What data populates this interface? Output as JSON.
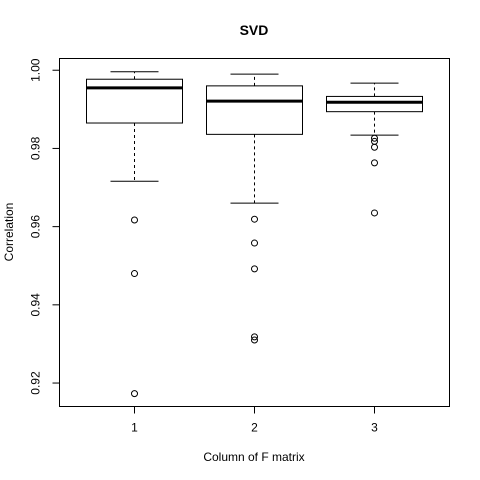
{
  "chart_data": {
    "type": "boxplot",
    "title": "SVD",
    "xlabel": "Column of F matrix",
    "ylabel": "Correlation",
    "categories": [
      "1",
      "2",
      "3"
    ],
    "ylim": [
      0.914,
      1.003
    ],
    "yticks": [
      0.92,
      0.94,
      0.96,
      0.98,
      1.0
    ],
    "ytick_labels": [
      "0.92",
      "0.94",
      "0.96",
      "0.98",
      "1.00"
    ],
    "grid": false,
    "boxes": [
      {
        "category": "1",
        "whisker_low": 0.9716,
        "q1": 0.9865,
        "median": 0.9955,
        "q3": 0.9977,
        "whisker_high": 0.9996,
        "outliers": [
          0.9617,
          0.948,
          0.9173
        ]
      },
      {
        "category": "2",
        "whisker_low": 0.966,
        "q1": 0.9836,
        "median": 0.9921,
        "q3": 0.996,
        "whisker_high": 0.999,
        "outliers": [
          0.9619,
          0.9558,
          0.9492,
          0.9318,
          0.931
        ]
      },
      {
        "category": "3",
        "whisker_low": 0.9834,
        "q1": 0.9894,
        "median": 0.9918,
        "q3": 0.9933,
        "whisker_high": 0.9967,
        "outliers": [
          0.9826,
          0.9818,
          0.9803,
          0.9763,
          0.9635
        ]
      }
    ]
  }
}
